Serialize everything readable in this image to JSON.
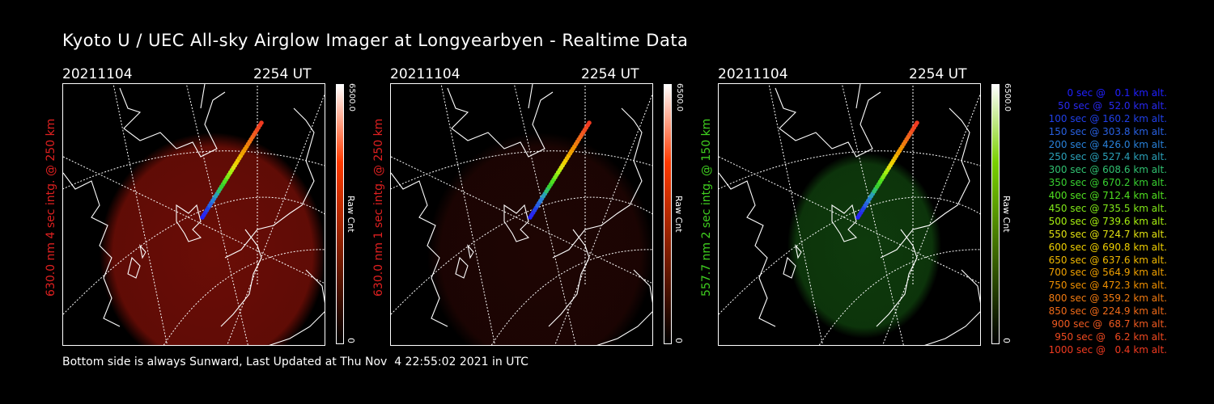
{
  "title": "Kyoto U / UEC All-sky Airglow Imager at Longyearbyen - Realtime Data",
  "footer": "Bottom side is always Sunward, Last Updated at Thu Nov  4 22:55:02 2021 in UTC",
  "panels": [
    {
      "date": "20211104",
      "time": "2254 UT",
      "label": "630.0 nm 4 sec intg. @ 250 km",
      "label_color": "#e02020",
      "colorbar_max": "6500.0",
      "colorbar_min": "0",
      "colorbar_unit": "Raw Cnt",
      "colorbar_color": "#ff3a00",
      "glow_color": "#6a0d06"
    },
    {
      "date": "20211104",
      "time": "2254 UT",
      "label": "630.0 nm 1 sec intg. @ 250 km",
      "label_color": "#e02020",
      "colorbar_max": "6500.0",
      "colorbar_min": "0",
      "colorbar_unit": "Raw Cnt",
      "colorbar_color": "#ff3a00",
      "glow_color": "#1e0503"
    },
    {
      "date": "20211104",
      "time": "2254 UT",
      "label": "557.7 nm 2 sec intg. @ 150 km",
      "label_color": "#40d020",
      "colorbar_max": "6500.0",
      "colorbar_min": "0",
      "colorbar_unit": "Raw Cnt",
      "colorbar_color": "#7ad000",
      "glow_color": "#0e3a0c"
    }
  ],
  "legend": [
    {
      "text": "0 sec @   0.1 km alt.",
      "color": "#2020ff"
    },
    {
      "text": "50 sec @  52.0 km alt.",
      "color": "#2828f0"
    },
    {
      "text": "100 sec @ 160.2 km alt.",
      "color": "#2040e8"
    },
    {
      "text": "150 sec @ 303.8 km alt.",
      "color": "#2860e0"
    },
    {
      "text": "200 sec @ 426.0 km alt.",
      "color": "#2880d8"
    },
    {
      "text": "250 sec @ 527.4 km alt.",
      "color": "#2aa0b8"
    },
    {
      "text": "300 sec @ 608.6 km alt.",
      "color": "#30c070"
    },
    {
      "text": "350 sec @ 670.2 km alt.",
      "color": "#38d030"
    },
    {
      "text": "400 sec @ 712.4 km alt.",
      "color": "#50e020"
    },
    {
      "text": "450 sec @ 735.5 km alt.",
      "color": "#80e818"
    },
    {
      "text": "500 sec @ 739.6 km alt.",
      "color": "#a8f010"
    },
    {
      "text": "550 sec @ 724.7 km alt.",
      "color": "#e0e010"
    },
    {
      "text": "600 sec @ 690.8 km alt.",
      "color": "#f0d000"
    },
    {
      "text": "650 sec @ 637.6 km alt.",
      "color": "#f0b800"
    },
    {
      "text": "700 sec @ 564.9 km alt.",
      "color": "#f0a000"
    },
    {
      "text": "750 sec @ 472.3 km alt.",
      "color": "#f09000"
    },
    {
      "text": "800 sec @ 359.2 km alt.",
      "color": "#f07a10"
    },
    {
      "text": "850 sec @ 224.9 km alt.",
      "color": "#f06a18"
    },
    {
      "text": "900 sec @  68.7 km alt.",
      "color": "#f05a20"
    },
    {
      "text": "950 sec @   6.2 km alt.",
      "color": "#f04a20"
    },
    {
      "text": "1000 sec @   0.4 km alt.",
      "color": "#f03a20"
    }
  ]
}
